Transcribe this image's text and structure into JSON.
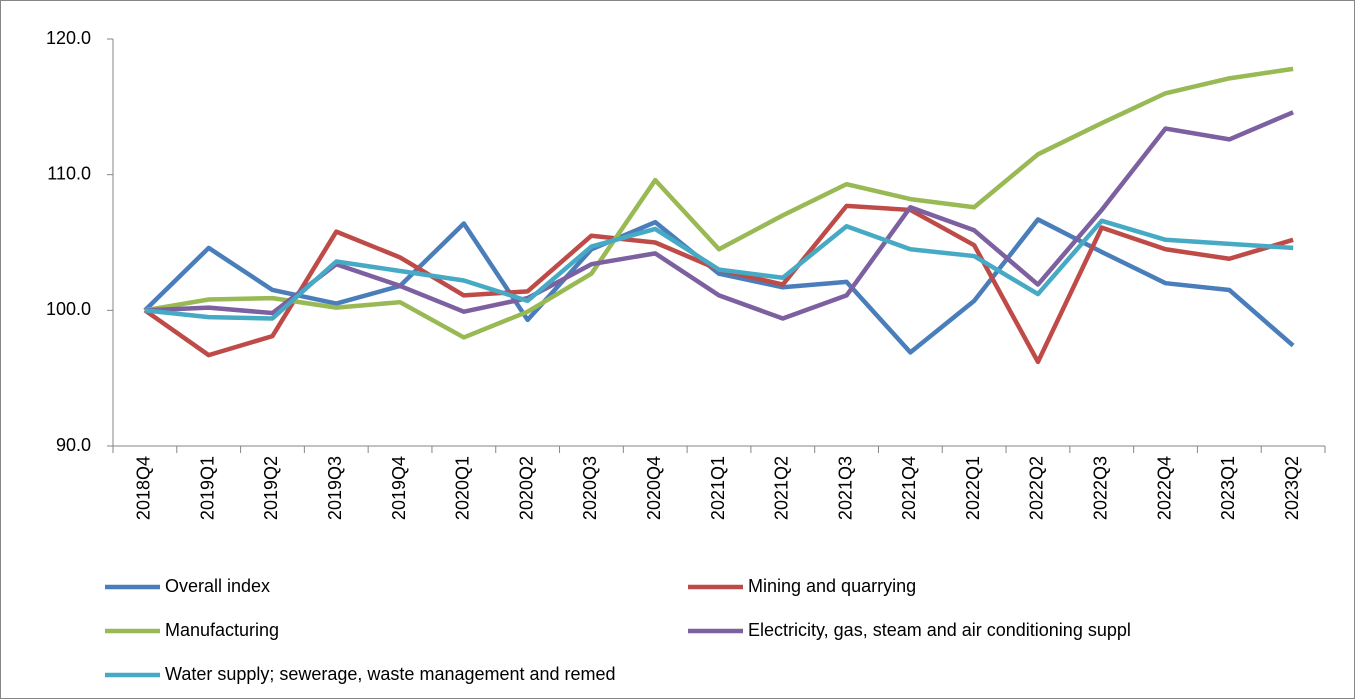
{
  "chart_data": {
    "type": "line",
    "categories": [
      "2018Q4",
      "2019Q1",
      "2019Q2",
      "2019Q3",
      "2019Q4",
      "2020Q1",
      "2020Q2",
      "2020Q3",
      "2020Q4",
      "2021Q1",
      "2021Q2",
      "2021Q3",
      "2021Q4",
      "2022Q1",
      "2022Q2",
      "2022Q3",
      "2022Q4",
      "2023Q1",
      "2023Q2"
    ],
    "series": [
      {
        "name": "Overall index",
        "color": "#4a7ebb",
        "values": [
          100,
          104.6,
          101.5,
          100.5,
          101.8,
          106.4,
          99.3,
          104.5,
          106.5,
          102.7,
          101.7,
          102.1,
          96.9,
          100.7,
          106.7,
          104.3,
          102.0,
          101.5,
          97.4
        ]
      },
      {
        "name": "Mining and quarrying",
        "color": "#be4b48",
        "values": [
          100,
          96.7,
          98.1,
          105.8,
          103.9,
          101.1,
          101.4,
          105.5,
          105.0,
          103.0,
          101.9,
          107.7,
          107.4,
          104.8,
          96.2,
          106.1,
          104.5,
          103.8,
          105.2
        ]
      },
      {
        "name": "Manufacturing",
        "color": "#98b954",
        "values": [
          100,
          100.8,
          100.9,
          100.2,
          100.6,
          98.0,
          99.9,
          102.7,
          109.6,
          104.5,
          107.0,
          109.3,
          108.2,
          107.6,
          111.5,
          113.8,
          116.0,
          117.1,
          117.8
        ]
      },
      {
        "name": "Electricity, gas, steam and air conditioning suppl",
        "color": "#7d60a0",
        "values": [
          100,
          100.2,
          99.8,
          103.4,
          101.8,
          99.9,
          100.9,
          103.4,
          104.2,
          101.1,
          99.4,
          101.1,
          107.6,
          105.9,
          101.9,
          107.4,
          113.4,
          112.6,
          114.6
        ]
      },
      {
        "name": "Water supply; sewerage, waste management and remed",
        "color": "#46aac5",
        "values": [
          100,
          99.5,
          99.4,
          103.6,
          102.9,
          102.2,
          100.7,
          104.7,
          106.0,
          103.0,
          102.4,
          106.2,
          104.5,
          104.0,
          101.2,
          106.6,
          105.2,
          104.9,
          104.6
        ]
      }
    ],
    "ylim": [
      90,
      120
    ],
    "yticks": [
      {
        "value": 90,
        "label": "90.0"
      },
      {
        "value": 100,
        "label": "100.0"
      },
      {
        "value": 110,
        "label": "110.0"
      },
      {
        "value": 120,
        "label": "120.0"
      }
    ],
    "grid": false,
    "legend": "bottom"
  }
}
